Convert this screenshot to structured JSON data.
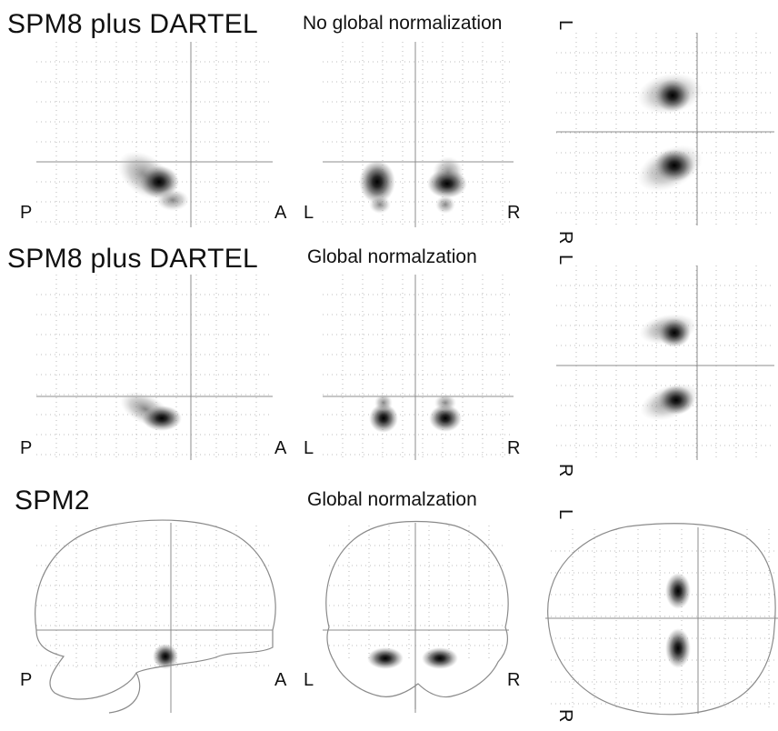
{
  "rows": [
    {
      "title": "SPM8 plus DARTEL",
      "subtitle": "No global normalization",
      "sagittal": {
        "left": "P",
        "right": "A"
      },
      "coronal": {
        "left": "L",
        "right": "R"
      },
      "axial": {
        "top": "L",
        "bottom": "R"
      }
    },
    {
      "title": "SPM8 plus DARTEL",
      "subtitle": "Global normalzation",
      "sagittal": {
        "left": "P",
        "right": "A"
      },
      "coronal": {
        "left": "L",
        "right": "R"
      },
      "axial": {
        "top": "L",
        "bottom": "R"
      }
    },
    {
      "title": "SPM2",
      "subtitle": "Global normalzation",
      "sagittal": {
        "left": "P",
        "right": "A"
      },
      "coronal": {
        "left": "L",
        "right": "R"
      },
      "axial": {
        "top": "L",
        "bottom": "R"
      }
    }
  ],
  "colors": {
    "grid": "#9a9a9a",
    "outline": "#8a8a8a",
    "blob": "#2a2a2a"
  }
}
